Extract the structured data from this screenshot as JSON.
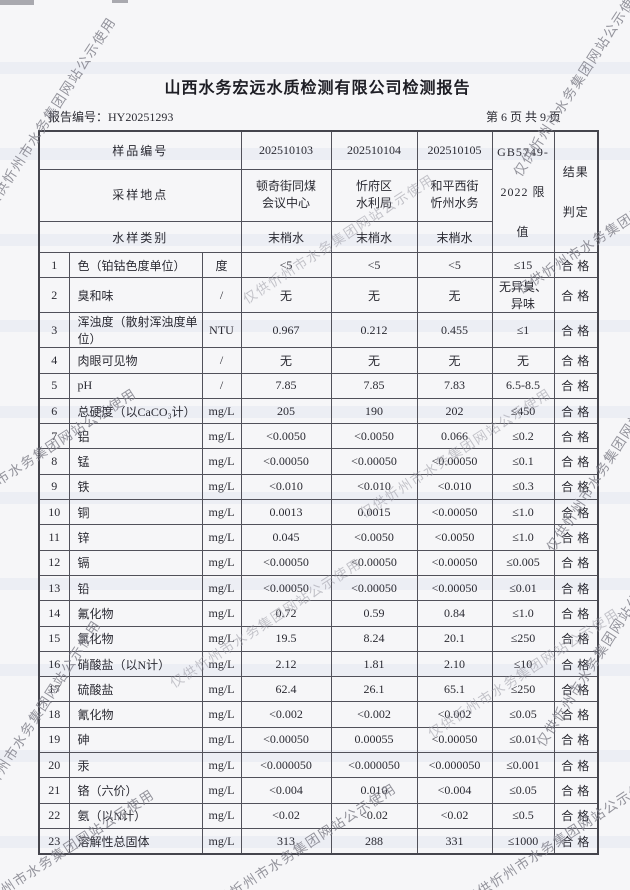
{
  "watermark": {
    "text": "仅供忻州市水务集团网站公示使用"
  },
  "header": {
    "title": "山西水务宏远水质检测有限公司检测报告",
    "report_no_label": "报告编号：",
    "report_no": "HY20251293",
    "page_info": "第 6 页 共 9 页"
  },
  "table": {
    "header": {
      "sample_no_label": "样品编号",
      "location_label": "采样地点",
      "type_label": "水样类别",
      "sample_ids": [
        "202510103",
        "202510104",
        "202510105"
      ],
      "locations": [
        "顿奇街同煤\n会议中心",
        "忻府区\n水利局",
        "和平西街\n忻州水务"
      ],
      "types": [
        "末梢水",
        "末梢水",
        "末梢水"
      ],
      "limit_header": "GB5749-\n2022 限值",
      "result_header": "结果\n判定"
    },
    "rows": [
      {
        "no": "1",
        "item": "色（铂钴色度单位）",
        "unit": "度",
        "v1": "<5",
        "v2": "<5",
        "v3": "<5",
        "limit": "≤15",
        "result": "合格"
      },
      {
        "no": "2",
        "item": "臭和味",
        "unit": "/",
        "v1": "无",
        "v2": "无",
        "v3": "无",
        "limit": "无异臭、异味",
        "result": "合格"
      },
      {
        "no": "3",
        "item": "浑浊度（散射浑浊度单位）",
        "unit": "NTU",
        "v1": "0.967",
        "v2": "0.212",
        "v3": "0.455",
        "limit": "≤1",
        "result": "合格"
      },
      {
        "no": "4",
        "item": "肉眼可见物",
        "unit": "/",
        "v1": "无",
        "v2": "无",
        "v3": "无",
        "limit": "无",
        "result": "合格"
      },
      {
        "no": "5",
        "item": "pH",
        "unit": "/",
        "v1": "7.85",
        "v2": "7.85",
        "v3": "7.83",
        "limit": "6.5-8.5",
        "result": "合格"
      },
      {
        "no": "6",
        "item": "总硬度（以CaCO₃计）",
        "unit": "mg/L",
        "v1": "205",
        "v2": "190",
        "v3": "202",
        "limit": "≤450",
        "result": "合格"
      },
      {
        "no": "7",
        "item": "铝",
        "unit": "mg/L",
        "v1": "<0.0050",
        "v2": "<0.0050",
        "v3": "0.066",
        "limit": "≤0.2",
        "result": "合格"
      },
      {
        "no": "8",
        "item": "锰",
        "unit": "mg/L",
        "v1": "<0.00050",
        "v2": "<0.00050",
        "v3": "<0.00050",
        "limit": "≤0.1",
        "result": "合格"
      },
      {
        "no": "9",
        "item": "铁",
        "unit": "mg/L",
        "v1": "<0.010",
        "v2": "<0.010",
        "v3": "<0.010",
        "limit": "≤0.3",
        "result": "合格"
      },
      {
        "no": "10",
        "item": "铜",
        "unit": "mg/L",
        "v1": "0.0013",
        "v2": "0.0015",
        "v3": "<0.00050",
        "limit": "≤1.0",
        "result": "合格"
      },
      {
        "no": "11",
        "item": "锌",
        "unit": "mg/L",
        "v1": "0.045",
        "v2": "<0.0050",
        "v3": "<0.0050",
        "limit": "≤1.0",
        "result": "合格"
      },
      {
        "no": "12",
        "item": "镉",
        "unit": "mg/L",
        "v1": "<0.00050",
        "v2": "<0.00050",
        "v3": "<0.00050",
        "limit": "≤0.005",
        "result": "合格"
      },
      {
        "no": "13",
        "item": "铅",
        "unit": "mg/L",
        "v1": "<0.00050",
        "v2": "<0.00050",
        "v3": "<0.00050",
        "limit": "≤0.01",
        "result": "合格"
      },
      {
        "no": "14",
        "item": "氟化物",
        "unit": "mg/L",
        "v1": "0.72",
        "v2": "0.59",
        "v3": "0.84",
        "limit": "≤1.0",
        "result": "合格"
      },
      {
        "no": "15",
        "item": "氯化物",
        "unit": "mg/L",
        "v1": "19.5",
        "v2": "8.24",
        "v3": "20.1",
        "limit": "≤250",
        "result": "合格"
      },
      {
        "no": "16",
        "item": "硝酸盐（以N计）",
        "unit": "mg/L",
        "v1": "2.12",
        "v2": "1.81",
        "v3": "2.10",
        "limit": "≤10",
        "result": "合格"
      },
      {
        "no": "17",
        "item": "硫酸盐",
        "unit": "mg/L",
        "v1": "62.4",
        "v2": "26.1",
        "v3": "65.1",
        "limit": "≤250",
        "result": "合格"
      },
      {
        "no": "18",
        "item": "氰化物",
        "unit": "mg/L",
        "v1": "<0.002",
        "v2": "<0.002",
        "v3": "<0.002",
        "limit": "≤0.05",
        "result": "合格"
      },
      {
        "no": "19",
        "item": "砷",
        "unit": "mg/L",
        "v1": "<0.00050",
        "v2": "0.00055",
        "v3": "<0.00050",
        "limit": "≤0.01",
        "result": "合格"
      },
      {
        "no": "20",
        "item": "汞",
        "unit": "mg/L",
        "v1": "<0.000050",
        "v2": "<0.000050",
        "v3": "<0.000050",
        "limit": "≤0.001",
        "result": "合格"
      },
      {
        "no": "21",
        "item": "铬（六价）",
        "unit": "mg/L",
        "v1": "<0.004",
        "v2": "0.010",
        "v3": "<0.004",
        "limit": "≤0.05",
        "result": "合格"
      },
      {
        "no": "22",
        "item": "氨（以N计）",
        "unit": "mg/L",
        "v1": "<0.02",
        "v2": "<0.02",
        "v3": "<0.02",
        "limit": "≤0.5",
        "result": "合格"
      },
      {
        "no": "23",
        "item": "溶解性总固体",
        "unit": "mg/L",
        "v1": "313",
        "v2": "288",
        "v3": "331",
        "limit": "≤1000",
        "result": "合格"
      }
    ]
  }
}
